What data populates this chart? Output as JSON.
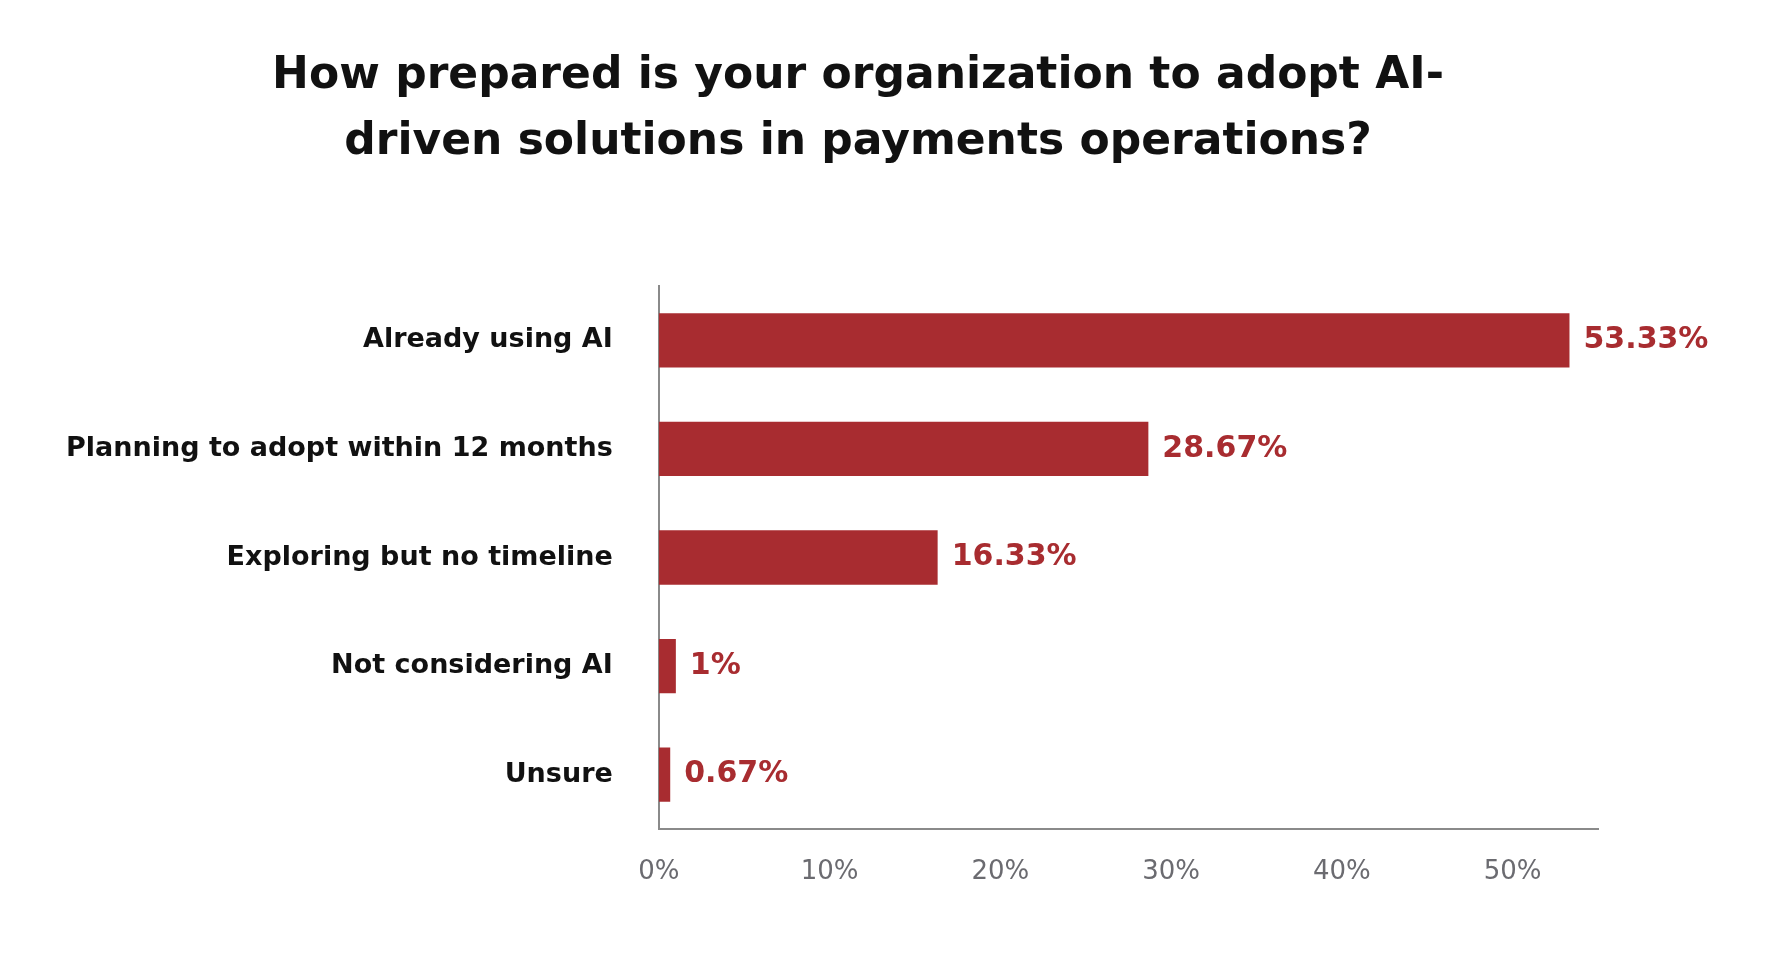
{
  "chart_data": {
    "type": "bar",
    "orientation": "horizontal",
    "title": "How prepared is your organization to adopt AI-driven solutions in payments operations?",
    "categories": [
      "Already using AI",
      "Planning to adopt within 12 months",
      "Exploring but no timeline",
      "Not considering AI",
      "Unsure"
    ],
    "values": [
      53.33,
      28.67,
      16.33,
      1,
      0.67
    ],
    "value_labels": [
      "53.33%",
      "28.67%",
      "16.33%",
      "1%",
      "0.67%"
    ],
    "color": "#a82c30",
    "xlim": [
      0,
      55
    ],
    "xticks": [
      {
        "value": 0,
        "label": "0%"
      },
      {
        "value": 10,
        "label": "10%"
      },
      {
        "value": 20,
        "label": "20%"
      },
      {
        "value": 30,
        "label": "30%"
      },
      {
        "value": 40,
        "label": "40%"
      },
      {
        "value": 50,
        "label": "50%"
      }
    ],
    "grid": false,
    "legend": false
  }
}
